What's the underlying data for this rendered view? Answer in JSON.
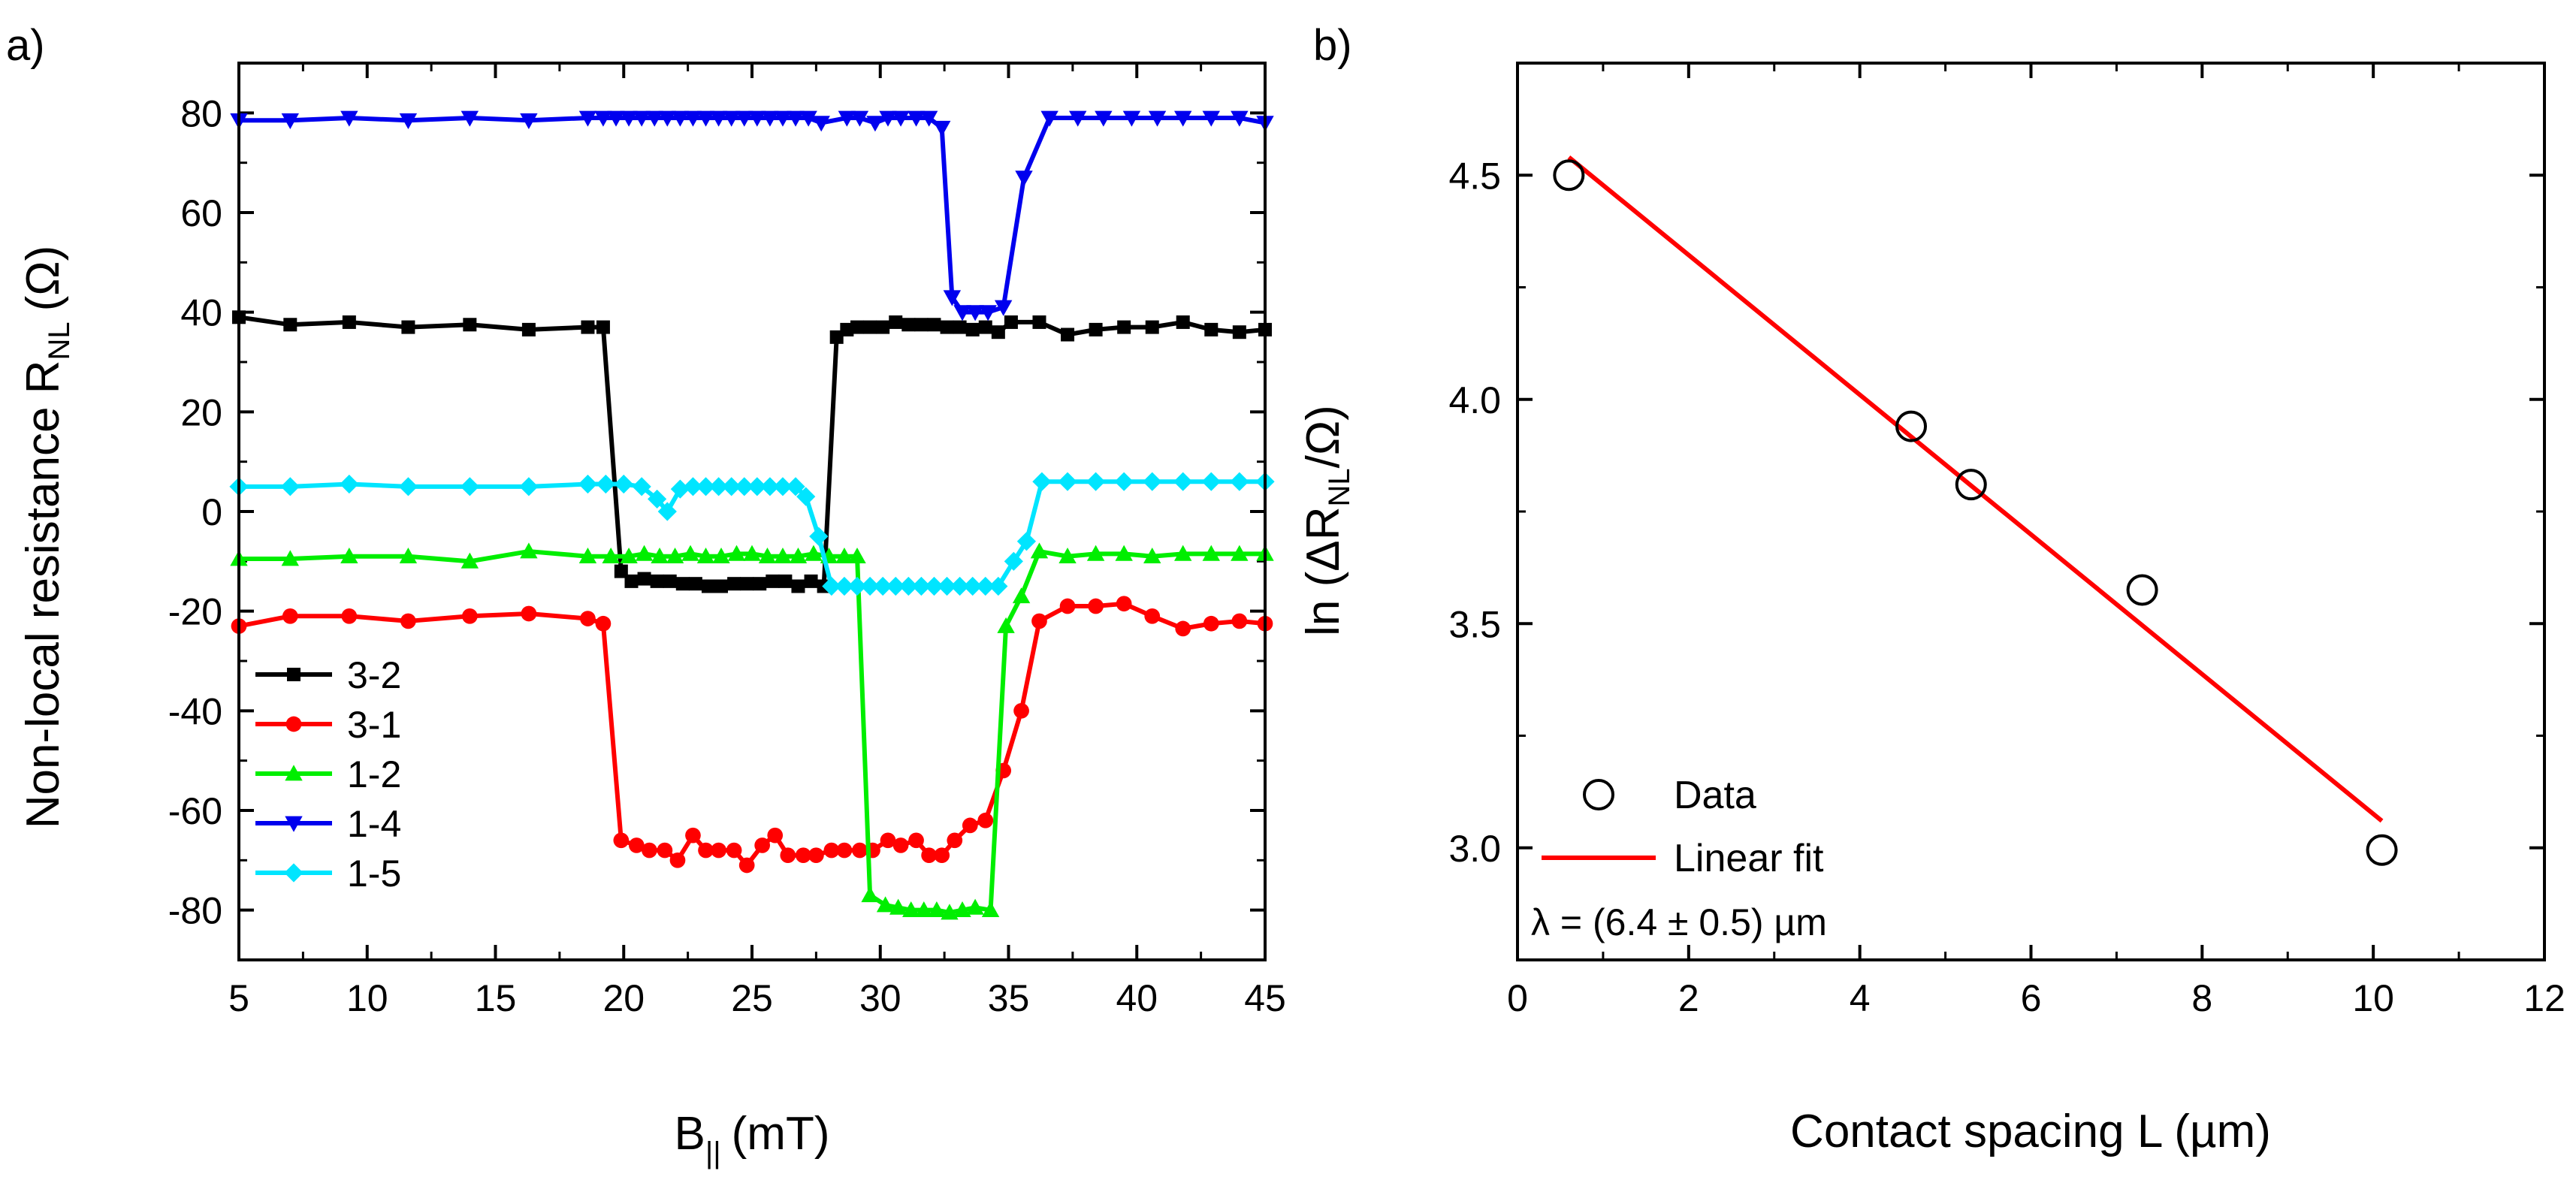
{
  "chart_data": [
    {
      "panel_label": "a)",
      "type": "line",
      "xlabel": "B",
      "xlabel_sub": "||",
      "xlabel_unit": "(mT)",
      "ylabel": "Non-local resistance R",
      "ylabel_sub": "NL",
      "ylabel_unit": "(Ω)",
      "xlim": [
        5,
        45
      ],
      "ylim": [
        -90,
        90
      ],
      "xticks": [
        5,
        10,
        15,
        20,
        25,
        30,
        35,
        40,
        45
      ],
      "yticks": [
        -80,
        -60,
        -40,
        -20,
        0,
        20,
        40,
        60,
        80
      ],
      "legend_position": "bottom-left",
      "series": [
        {
          "name": "3-2",
          "color": "#000000",
          "marker": "square",
          "points": [
            [
              5,
              39
            ],
            [
              7,
              37.5
            ],
            [
              9.3,
              38
            ],
            [
              11.6,
              37
            ],
            [
              14,
              37.5
            ],
            [
              16.3,
              36.5
            ],
            [
              18.6,
              37
            ],
            [
              19.2,
              37
            ],
            [
              19.9,
              -12
            ],
            [
              20.3,
              -14
            ],
            [
              20.8,
              -13.5
            ],
            [
              21.3,
              -14
            ],
            [
              21.8,
              -14
            ],
            [
              22.3,
              -14.5
            ],
            [
              22.8,
              -14.5
            ],
            [
              23.3,
              -15
            ],
            [
              23.8,
              -15
            ],
            [
              24.3,
              -14.5
            ],
            [
              24.8,
              -14.5
            ],
            [
              25.3,
              -14.5
            ],
            [
              25.8,
              -14
            ],
            [
              26.3,
              -14
            ],
            [
              26.8,
              -15
            ],
            [
              27.3,
              -14
            ],
            [
              27.8,
              -15
            ],
            [
              28.3,
              35
            ],
            [
              28.7,
              36.5
            ],
            [
              29.1,
              37
            ],
            [
              29.6,
              37
            ],
            [
              30.1,
              37
            ],
            [
              30.6,
              38
            ],
            [
              31.1,
              37.5
            ],
            [
              31.6,
              37.5
            ],
            [
              32.1,
              37.5
            ],
            [
              32.6,
              37
            ],
            [
              33.1,
              37
            ],
            [
              33.6,
              36.5
            ],
            [
              34.1,
              37
            ],
            [
              34.6,
              36
            ],
            [
              35.1,
              38
            ],
            [
              36.2,
              38
            ],
            [
              37.3,
              35.5
            ],
            [
              38.4,
              36.5
            ],
            [
              39.5,
              37
            ],
            [
              40.6,
              37
            ],
            [
              41.8,
              38
            ],
            [
              42.9,
              36.5
            ],
            [
              44,
              36
            ],
            [
              45,
              36.5
            ]
          ]
        },
        {
          "name": "3-1",
          "color": "#ff0000",
          "marker": "circle",
          "points": [
            [
              5,
              -23
            ],
            [
              7,
              -21
            ],
            [
              9.3,
              -21
            ],
            [
              11.6,
              -22
            ],
            [
              14,
              -21
            ],
            [
              16.3,
              -20.5
            ],
            [
              18.6,
              -21.5
            ],
            [
              19.2,
              -22.5
            ],
            [
              19.9,
              -66
            ],
            [
              20.5,
              -67
            ],
            [
              21,
              -68
            ],
            [
              21.6,
              -68
            ],
            [
              22.1,
              -70
            ],
            [
              22.7,
              -65
            ],
            [
              23.2,
              -68
            ],
            [
              23.7,
              -68
            ],
            [
              24.3,
              -68
            ],
            [
              24.8,
              -71
            ],
            [
              25.4,
              -67
            ],
            [
              25.9,
              -65
            ],
            [
              26.4,
              -69
            ],
            [
              27,
              -69
            ],
            [
              27.5,
              -69
            ],
            [
              28.1,
              -68
            ],
            [
              28.6,
              -68
            ],
            [
              29.2,
              -68
            ],
            [
              29.7,
              -68
            ],
            [
              30.3,
              -66
            ],
            [
              30.8,
              -67
            ],
            [
              31.4,
              -66
            ],
            [
              31.9,
              -69
            ],
            [
              32.4,
              -69
            ],
            [
              32.9,
              -66
            ],
            [
              33.5,
              -63
            ],
            [
              34.1,
              -62
            ],
            [
              34.8,
              -52
            ],
            [
              35.5,
              -40
            ],
            [
              36.2,
              -22
            ],
            [
              37.3,
              -19
            ],
            [
              38.4,
              -19
            ],
            [
              39.5,
              -18.5
            ],
            [
              40.6,
              -21
            ],
            [
              41.8,
              -23.5
            ],
            [
              42.9,
              -22.5
            ],
            [
              44,
              -22
            ],
            [
              45,
              -22.5
            ]
          ]
        },
        {
          "name": "1-2",
          "color": "#00ee00",
          "marker": "triangle-up",
          "points": [
            [
              5,
              -9.5
            ],
            [
              7,
              -9.5
            ],
            [
              9.3,
              -9
            ],
            [
              11.6,
              -9
            ],
            [
              14,
              -10
            ],
            [
              16.3,
              -8
            ],
            [
              18.6,
              -9
            ],
            [
              19.5,
              -9
            ],
            [
              20.2,
              -9
            ],
            [
              20.8,
              -8.5
            ],
            [
              21.4,
              -9
            ],
            [
              22,
              -9
            ],
            [
              22.6,
              -8.5
            ],
            [
              23.2,
              -9
            ],
            [
              23.8,
              -9
            ],
            [
              24.4,
              -8.5
            ],
            [
              25,
              -8.5
            ],
            [
              25.6,
              -9
            ],
            [
              26.2,
              -9
            ],
            [
              26.8,
              -9
            ],
            [
              27.4,
              -8.5
            ],
            [
              28,
              -9
            ],
            [
              28.6,
              -9
            ],
            [
              29.1,
              -9
            ],
            [
              29.6,
              -77
            ],
            [
              30.2,
              -79
            ],
            [
              30.7,
              -79.5
            ],
            [
              31.2,
              -80
            ],
            [
              31.7,
              -80
            ],
            [
              32.2,
              -80
            ],
            [
              32.7,
              -80.5
            ],
            [
              33.2,
              -80
            ],
            [
              33.7,
              -79.5
            ],
            [
              34.3,
              -80
            ],
            [
              34.9,
              -23
            ],
            [
              35.5,
              -17
            ],
            [
              36.2,
              -8
            ],
            [
              37.3,
              -9
            ],
            [
              38.4,
              -8.5
            ],
            [
              39.5,
              -8.5
            ],
            [
              40.6,
              -9
            ],
            [
              41.8,
              -8.5
            ],
            [
              42.9,
              -8.5
            ],
            [
              44,
              -8.5
            ],
            [
              45,
              -8.5
            ]
          ]
        },
        {
          "name": "1-4",
          "color": "#0000ee",
          "marker": "triangle-down",
          "points": [
            [
              5,
              78.5
            ],
            [
              7,
              78.5
            ],
            [
              9.3,
              79
            ],
            [
              11.6,
              78.5
            ],
            [
              14,
              79
            ],
            [
              16.3,
              78.5
            ],
            [
              18.6,
              79
            ],
            [
              19.2,
              79
            ],
            [
              19.7,
              79
            ],
            [
              20.2,
              79
            ],
            [
              20.7,
              79
            ],
            [
              21.2,
              79
            ],
            [
              21.7,
              79
            ],
            [
              22.2,
              79
            ],
            [
              22.7,
              79
            ],
            [
              23.2,
              79
            ],
            [
              23.7,
              79
            ],
            [
              24.2,
              79
            ],
            [
              24.7,
              79
            ],
            [
              25.2,
              79
            ],
            [
              25.7,
              79
            ],
            [
              26.2,
              79
            ],
            [
              26.7,
              79
            ],
            [
              27.2,
              79
            ],
            [
              27.7,
              78
            ],
            [
              28.7,
              79
            ],
            [
              29.2,
              79
            ],
            [
              29.8,
              78
            ],
            [
              30.3,
              79
            ],
            [
              30.8,
              79
            ],
            [
              31.4,
              79
            ],
            [
              31.9,
              79
            ],
            [
              32.4,
              77
            ],
            [
              32.8,
              43
            ],
            [
              33.2,
              40
            ],
            [
              33.7,
              40
            ],
            [
              34.2,
              40
            ],
            [
              34.8,
              41
            ],
            [
              35.6,
              67
            ],
            [
              36.6,
              79
            ],
            [
              37.7,
              79
            ],
            [
              38.7,
              79
            ],
            [
              39.8,
              79
            ],
            [
              40.8,
              79
            ],
            [
              41.8,
              79
            ],
            [
              42.9,
              79
            ],
            [
              44,
              79
            ],
            [
              45,
              78
            ]
          ]
        },
        {
          "name": "1-5",
          "color": "#00e5ff",
          "marker": "diamond",
          "points": [
            [
              5,
              5
            ],
            [
              7,
              5
            ],
            [
              9.3,
              5.5
            ],
            [
              11.6,
              5
            ],
            [
              14,
              5
            ],
            [
              16.3,
              5
            ],
            [
              18.6,
              5.5
            ],
            [
              19.3,
              5.5
            ],
            [
              20,
              5.5
            ],
            [
              20.7,
              5
            ],
            [
              21.3,
              2.5
            ],
            [
              21.7,
              0
            ],
            [
              22.2,
              4.5
            ],
            [
              22.7,
              5
            ],
            [
              23.2,
              5
            ],
            [
              23.7,
              5
            ],
            [
              24.2,
              5
            ],
            [
              24.7,
              5
            ],
            [
              25.2,
              5
            ],
            [
              25.7,
              5
            ],
            [
              26.2,
              5
            ],
            [
              26.7,
              5
            ],
            [
              27.1,
              3
            ],
            [
              27.6,
              -5
            ],
            [
              28.1,
              -15
            ],
            [
              28.6,
              -15
            ],
            [
              29.1,
              -15
            ],
            [
              29.6,
              -15
            ],
            [
              30.1,
              -15
            ],
            [
              30.6,
              -15
            ],
            [
              31.1,
              -15
            ],
            [
              31.6,
              -15
            ],
            [
              32.1,
              -15
            ],
            [
              32.6,
              -15
            ],
            [
              33.1,
              -15
            ],
            [
              33.6,
              -15
            ],
            [
              34.1,
              -15
            ],
            [
              34.6,
              -15
            ],
            [
              35.2,
              -10
            ],
            [
              35.7,
              -6
            ],
            [
              36.3,
              6
            ],
            [
              37.3,
              6
            ],
            [
              38.4,
              6
            ],
            [
              39.5,
              6
            ],
            [
              40.6,
              6
            ],
            [
              41.8,
              6
            ],
            [
              42.9,
              6
            ],
            [
              44,
              6
            ],
            [
              45,
              6
            ]
          ]
        }
      ]
    },
    {
      "panel_label": "b)",
      "type": "scatter",
      "xlabel": "Contact spacing L (µm)",
      "ylabel": "ln (ΔR",
      "ylabel_sub": "NL",
      "ylabel_unit": "/Ω)",
      "xlim": [
        0,
        12
      ],
      "ylim": [
        2.75,
        4.75
      ],
      "xticks": [
        0,
        2,
        4,
        6,
        8,
        10,
        12
      ],
      "yticks": [
        3.0,
        3.5,
        4.0,
        4.5
      ],
      "legend_position": "bottom-left",
      "series": [
        {
          "name": "Data",
          "marker": "open-circle",
          "color": "#000000",
          "x": [
            0.6,
            4.6,
            5.3,
            7.3,
            10.1
          ],
          "y": [
            4.5,
            3.94,
            3.81,
            3.575,
            2.995
          ]
        },
        {
          "name": "Linear fit",
          "type": "line",
          "color": "#ff0000",
          "x": [
            0.6,
            10.1
          ],
          "y": [
            4.54,
            3.06
          ]
        }
      ],
      "annotation": "λ = (6.4 ± 0.5) µm"
    }
  ]
}
